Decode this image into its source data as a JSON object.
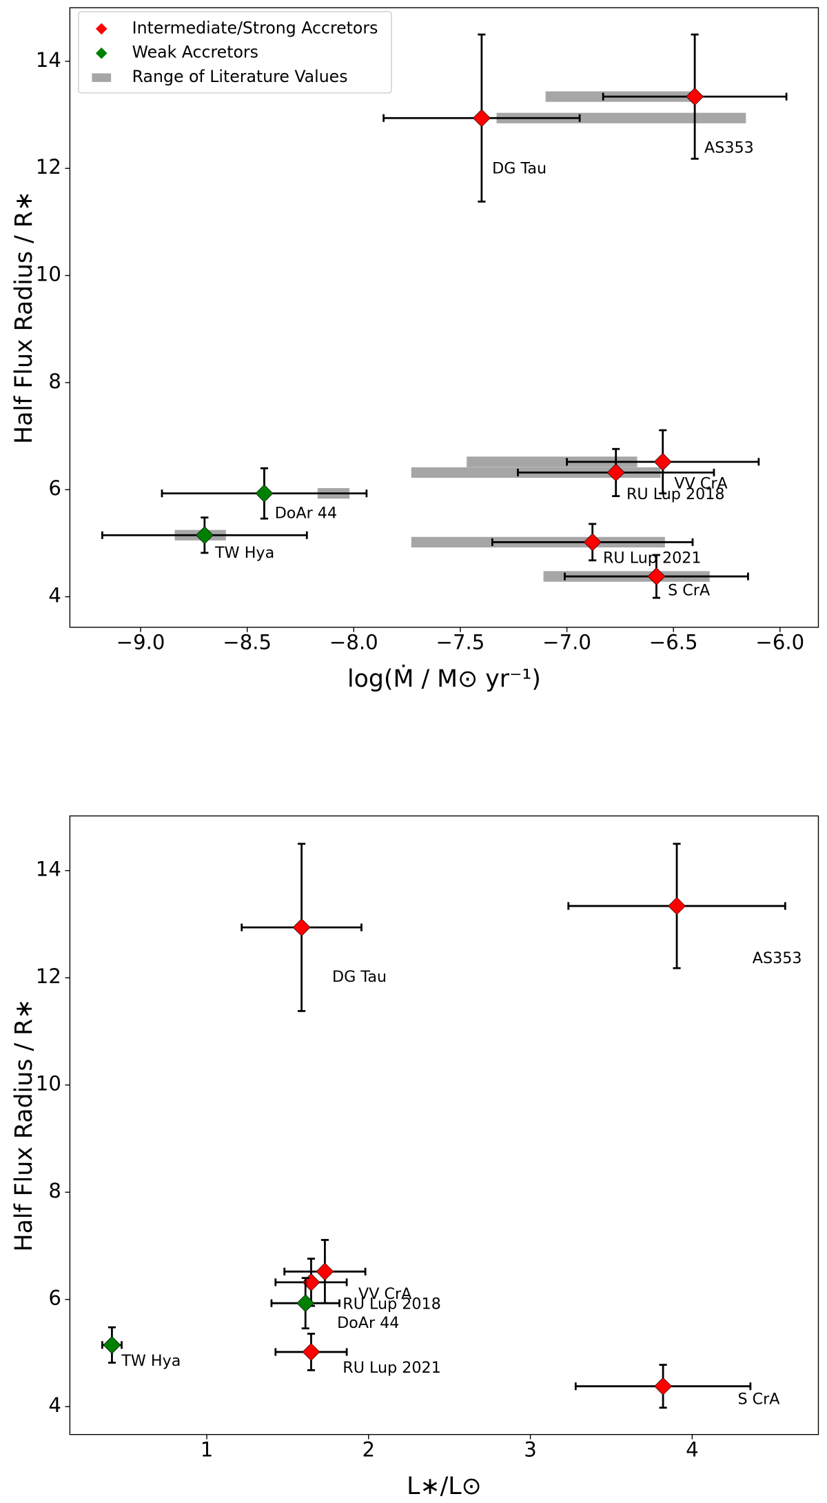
{
  "chart_data": [
    {
      "type": "scatter",
      "xlabel": "log(Ṁ / M⊙ yr⁻¹)",
      "ylabel": "Half Flux Radius / R∗",
      "xlim": [
        -9.332,
        -5.82
      ],
      "ylim": [
        3.43,
        15.0
      ],
      "xticks": [
        {
          "value": -9.0,
          "label": "−9.0"
        },
        {
          "value": -8.5,
          "label": "−8.5"
        },
        {
          "value": -8.0,
          "label": "−8.0"
        },
        {
          "value": -7.5,
          "label": "−7.5"
        },
        {
          "value": -7.0,
          "label": "−7.0"
        },
        {
          "value": -6.5,
          "label": "−6.5"
        },
        {
          "value": -6.0,
          "label": "−6.0"
        }
      ],
      "yticks": [
        4,
        6,
        8,
        10,
        12,
        14
      ],
      "legend": "upper left",
      "ranges": {
        "name": "Range of Literature Values",
        "color": "#a6a6a6",
        "y": [
          12.94,
          13.34,
          6.52,
          6.32,
          5.02,
          4.38,
          5.93,
          5.15
        ],
        "lo": [
          -7.33,
          -7.1,
          -7.47,
          -7.73,
          -7.73,
          -7.11,
          -8.17,
          -8.84
        ],
        "hi": [
          -6.16,
          -6.4,
          -6.67,
          -6.56,
          -6.54,
          -6.33,
          -8.02,
          -8.6
        ]
      },
      "series": [
        {
          "name": "Intermediate/Strong Accretors",
          "color": "#ff0000",
          "labels": [
            "DG Tau",
            "AS353",
            "VV CrA",
            "RU Lup 2018",
            "RU Lup 2021",
            "S CrA"
          ],
          "x": [
            -7.4,
            -6.4,
            -6.55,
            -6.77,
            -6.88,
            -6.58
          ],
          "xerr": [
            0.46,
            0.43,
            0.45,
            0.46,
            0.47,
            0.43
          ],
          "y": [
            12.94,
            13.34,
            6.52,
            6.32,
            5.02,
            4.38
          ],
          "yerr": [
            1.56,
            1.16,
            0.59,
            0.44,
            0.34,
            0.4
          ]
        },
        {
          "name": "Weak Accretors",
          "color": "#008000",
          "labels": [
            "DoAr 44",
            "TW Hya"
          ],
          "x": [
            -8.42,
            -8.7
          ],
          "xerr": [
            0.48,
            0.48
          ],
          "y": [
            5.93,
            5.15
          ],
          "yerr": [
            0.47,
            0.33
          ]
        }
      ]
    },
    {
      "type": "scatter",
      "xlabel": "L∗/L⊙",
      "ylabel": "Half Flux Radius / R∗",
      "xlim": [
        0.154,
        4.78
      ],
      "ylim": [
        3.48,
        15.02
      ],
      "xticks": [
        1,
        2,
        3,
        4
      ],
      "yticks": [
        4,
        6,
        8,
        10,
        12,
        14
      ],
      "series": [
        {
          "color": "#ff0000",
          "labels": [
            "DG Tau",
            "AS353",
            "VV CrA",
            "RU Lup 2018",
            "RU Lup 2021",
            "S CrA"
          ],
          "x": [
            1.586,
            3.905,
            1.73,
            1.645,
            1.645,
            3.82
          ],
          "xerr": [
            0.37,
            0.67,
            0.25,
            0.22,
            0.22,
            0.54
          ],
          "y": [
            12.94,
            13.34,
            6.52,
            6.32,
            5.02,
            4.38
          ],
          "yerr": [
            1.56,
            1.16,
            0.59,
            0.44,
            0.34,
            0.4
          ]
        },
        {
          "color": "#008000",
          "labels": [
            "DoAr 44",
            "TW Hya"
          ],
          "x": [
            1.61,
            0.414
          ],
          "xerr": [
            0.21,
            0.06
          ],
          "y": [
            5.93,
            5.15
          ],
          "yerr": [
            0.47,
            0.33
          ]
        }
      ]
    }
  ]
}
